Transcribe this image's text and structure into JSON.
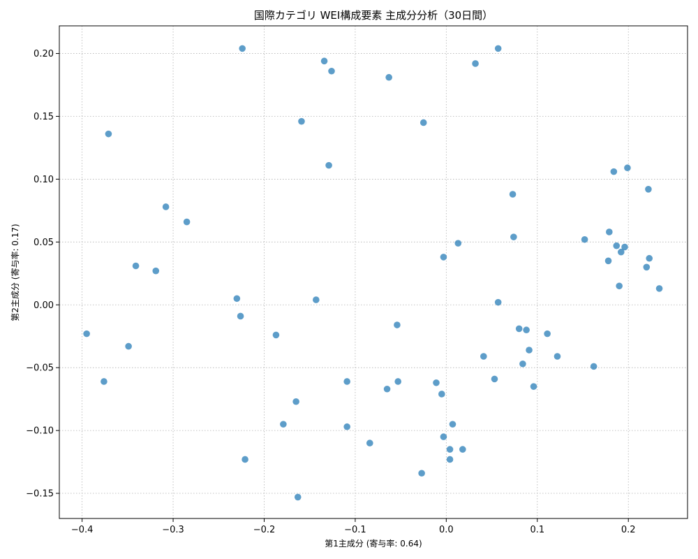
{
  "chart_data": {
    "type": "scatter",
    "title": "国際カテゴリ WEI構成要素 主成分分析（30日間）",
    "xlabel": "第1主成分 (寄与率: 0.64)",
    "ylabel": "第2主成分 (寄与率: 0.17)",
    "xlim": [
      -0.425,
      0.265
    ],
    "ylim": [
      -0.17,
      0.222
    ],
    "grid": true,
    "xticks": [
      -0.4,
      -0.3,
      -0.2,
      -0.1,
      0.0,
      0.1,
      0.2
    ],
    "xtick_labels": [
      "−0.4",
      "−0.3",
      "−0.2",
      "−0.1",
      "0.0",
      "0.1",
      "0.2"
    ],
    "yticks": [
      -0.15,
      -0.1,
      -0.05,
      0.0,
      0.05,
      0.1,
      0.15,
      0.2
    ],
    "ytick_labels": [
      "−0.15",
      "−0.10",
      "−0.05",
      "0.00",
      "0.05",
      "0.10",
      "0.15",
      "0.20"
    ],
    "point_color": "#1f77b4",
    "points": [
      [
        -0.224,
        0.204
      ],
      [
        -0.134,
        0.194
      ],
      [
        -0.126,
        0.186
      ],
      [
        -0.063,
        0.181
      ],
      [
        0.032,
        0.192
      ],
      [
        0.057,
        0.204
      ],
      [
        -0.371,
        0.136
      ],
      [
        -0.159,
        0.146
      ],
      [
        -0.025,
        0.145
      ],
      [
        -0.129,
        0.111
      ],
      [
        0.184,
        0.106
      ],
      [
        0.199,
        0.109
      ],
      [
        0.222,
        0.092
      ],
      [
        0.073,
        0.088
      ],
      [
        -0.308,
        0.078
      ],
      [
        -0.285,
        0.066
      ],
      [
        0.179,
        0.058
      ],
      [
        0.074,
        0.054
      ],
      [
        0.152,
        0.052
      ],
      [
        0.013,
        0.049
      ],
      [
        0.187,
        0.047
      ],
      [
        0.196,
        0.046
      ],
      [
        0.192,
        0.042
      ],
      [
        -0.003,
        0.038
      ],
      [
        0.223,
        0.037
      ],
      [
        0.178,
        0.035
      ],
      [
        -0.341,
        0.031
      ],
      [
        0.22,
        0.03
      ],
      [
        -0.319,
        0.027
      ],
      [
        0.19,
        0.015
      ],
      [
        0.234,
        0.013
      ],
      [
        -0.23,
        0.005
      ],
      [
        -0.143,
        0.004
      ],
      [
        0.057,
        0.002
      ],
      [
        -0.226,
        -0.009
      ],
      [
        -0.054,
        -0.016
      ],
      [
        0.08,
        -0.019
      ],
      [
        0.088,
        -0.02
      ],
      [
        -0.395,
        -0.023
      ],
      [
        -0.187,
        -0.024
      ],
      [
        0.111,
        -0.023
      ],
      [
        -0.349,
        -0.033
      ],
      [
        0.091,
        -0.036
      ],
      [
        0.041,
        -0.041
      ],
      [
        0.122,
        -0.041
      ],
      [
        0.084,
        -0.047
      ],
      [
        0.162,
        -0.049
      ],
      [
        0.053,
        -0.059
      ],
      [
        -0.376,
        -0.061
      ],
      [
        -0.109,
        -0.061
      ],
      [
        -0.053,
        -0.061
      ],
      [
        -0.011,
        -0.062
      ],
      [
        0.096,
        -0.065
      ],
      [
        -0.065,
        -0.067
      ],
      [
        -0.005,
        -0.071
      ],
      [
        -0.165,
        -0.077
      ],
      [
        -0.179,
        -0.095
      ],
      [
        0.007,
        -0.095
      ],
      [
        -0.109,
        -0.097
      ],
      [
        -0.003,
        -0.105
      ],
      [
        -0.084,
        -0.11
      ],
      [
        0.004,
        -0.115
      ],
      [
        0.018,
        -0.115
      ],
      [
        -0.221,
        -0.123
      ],
      [
        0.004,
        -0.123
      ],
      [
        -0.027,
        -0.134
      ],
      [
        -0.163,
        -0.153
      ]
    ]
  }
}
